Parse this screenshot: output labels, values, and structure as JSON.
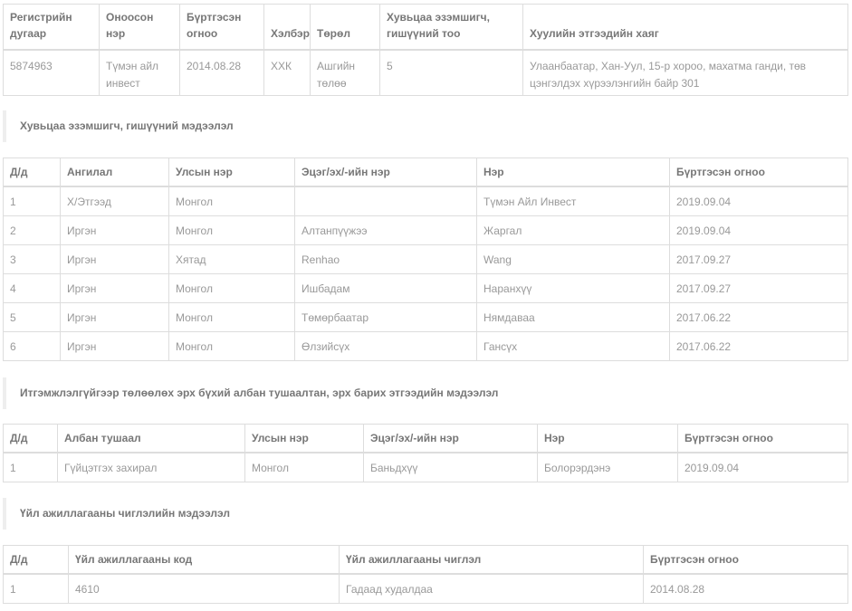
{
  "company": {
    "headers": [
      "Регистрийн дугаар",
      "Оноосон нэр",
      "Бүртгэсэн огноо",
      "Хэлбэр",
      "Төрөл",
      "Хувьцаа эзэмшигч, гишүүний тоо",
      "Хуулийн этгээдийн хаяг"
    ],
    "row": [
      "5874963",
      "Түмэн айл инвест",
      "2014.08.28",
      "ХХК",
      "Ашгийн төлөө",
      "5",
      "Улаанбаатар, Хан-Уул, 15-р хороо, махатма ганди, төв цэнгэлдэх хүрээлэнгийн байр 301"
    ]
  },
  "shareholders": {
    "title": "Хувьцаа эзэмшигч, гишүүний мэдээлэл",
    "headers": [
      "Д/д",
      "Ангилал",
      "Улсын нэр",
      "Эцэг/эх/-ийн нэр",
      "Нэр",
      "Бүртгэсэн огноо"
    ],
    "rows": [
      [
        "1",
        "Х/Этгээд",
        "Монгол",
        "",
        "Түмэн Айл Инвест",
        "2019.09.04"
      ],
      [
        "2",
        "Иргэн",
        "Монгол",
        "Алтанпүүжээ",
        "Жаргал",
        "2019.09.04"
      ],
      [
        "3",
        "Иргэн",
        "Хятад",
        "Renhao",
        "Wang",
        "2017.09.27"
      ],
      [
        "4",
        "Иргэн",
        "Монгол",
        "Ишбадам",
        "Наранхүү",
        "2017.09.27"
      ],
      [
        "5",
        "Иргэн",
        "Монгол",
        "Төмөрбаатар",
        "Нямдаваа",
        "2017.06.22"
      ],
      [
        "6",
        "Иргэн",
        "Монгол",
        "Өлзийсүх",
        "Гансүх",
        "2017.06.22"
      ]
    ]
  },
  "officials": {
    "title": "Итгэмжлэлгүйгээр төлөөлөх эрх бүхий албан тушаалтан, эрх барих этгээдийн мэдээлэл",
    "headers": [
      "Д/д",
      "Албан тушаал",
      "Улсын нэр",
      "Эцэг/эх/-ийн нэр",
      "Нэр",
      "Бүртгэсэн огноо"
    ],
    "rows": [
      [
        "1",
        "Гүйцэтгэх захирал",
        "Монгол",
        "Баньдхүү",
        "Болорэрдэнэ",
        "2019.09.04"
      ]
    ]
  },
  "activities": {
    "title": "Үйл ажиллагааны чиглэлийн мэдээлэл",
    "headers": [
      "Д/д",
      "Үйл ажиллагааны код",
      "Үйл ажиллагааны чиглэл",
      "Бүртгэсэн огноо"
    ],
    "rows": [
      [
        "1",
        "4610",
        "Гадаад худалдаа",
        "2014.08.28"
      ]
    ]
  }
}
